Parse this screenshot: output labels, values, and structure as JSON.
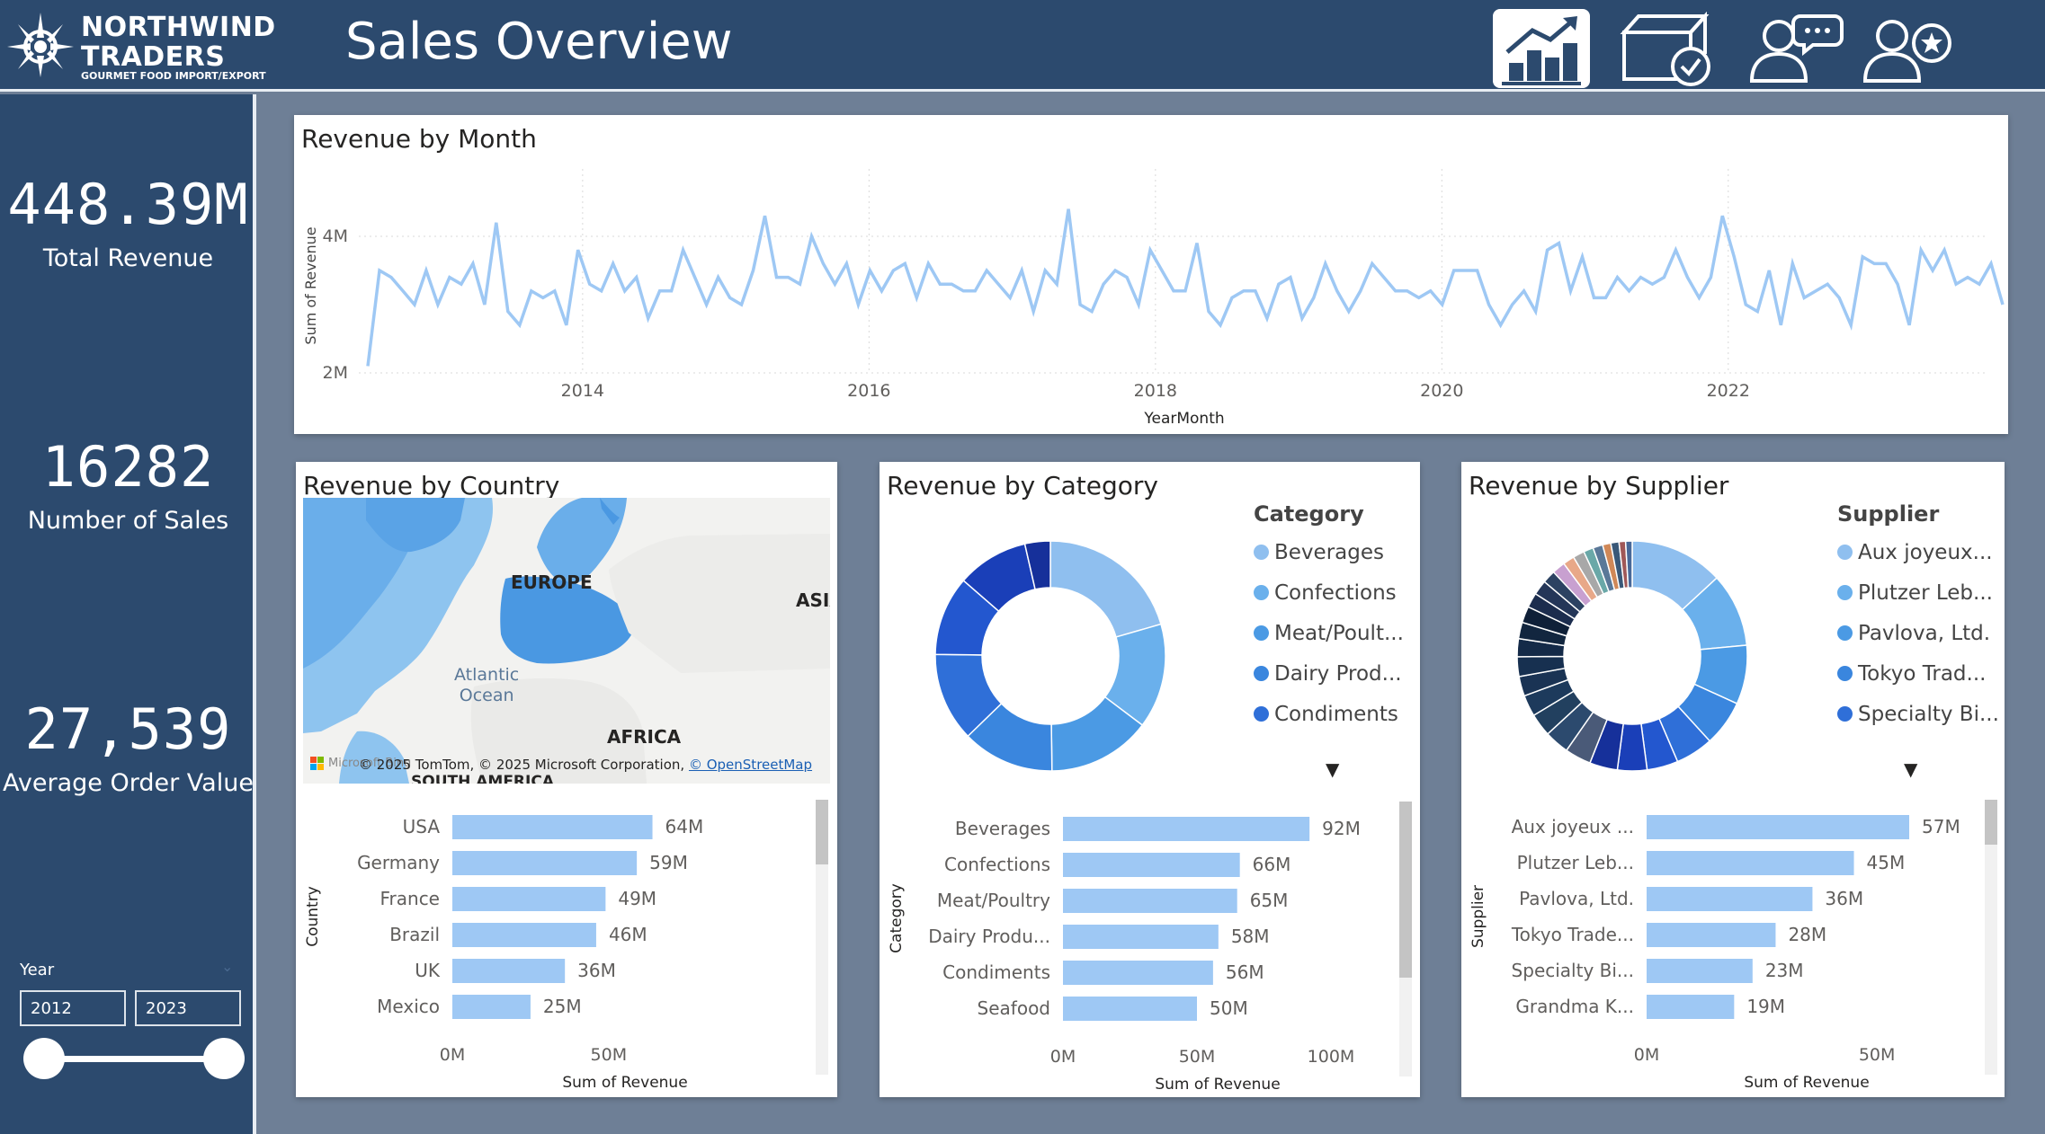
{
  "brand": {
    "name_line1": "NORTHWIND",
    "name_line2": "TRADERS",
    "tagline": "GOURMET FOOD IMPORT/EXPORT"
  },
  "header": {
    "title": "Sales Overview",
    "nav_icons": [
      "sales-overview-icon",
      "shipping-box-icon",
      "customer-chat-icon",
      "employee-star-icon"
    ]
  },
  "kpis": [
    {
      "value": "448.39M",
      "label": "Total Revenue"
    },
    {
      "value": "16282",
      "label": "Number of Sales"
    },
    {
      "value": "27,539",
      "label": "Average Order Value"
    }
  ],
  "year_slicer": {
    "label": "Year",
    "from": "2012",
    "to": "2023"
  },
  "revenue_by_month": {
    "title": "Revenue by Month",
    "chart_data": {
      "type": "line",
      "x_label": "YearMonth",
      "y_label": "Sum of Revenue",
      "x_ticks": [
        "2014",
        "2016",
        "2018",
        "2020",
        "2022"
      ],
      "y_ticks": [
        "2M",
        "4M"
      ],
      "ylim": [
        2000000,
        4000000
      ],
      "x_start": "2012-07",
      "x_end": "2023-12",
      "values_m": [
        2.1,
        3.5,
        3.4,
        3.2,
        3.0,
        3.5,
        3.0,
        3.4,
        3.3,
        3.6,
        3.0,
        4.2,
        2.9,
        2.7,
        3.2,
        3.1,
        3.2,
        2.7,
        3.8,
        3.3,
        3.2,
        3.6,
        3.2,
        3.4,
        2.8,
        3.2,
        3.2,
        3.8,
        3.4,
        3.0,
        3.4,
        3.1,
        3.0,
        3.5,
        4.3,
        3.4,
        3.4,
        3.3,
        4.0,
        3.6,
        3.3,
        3.6,
        3.0,
        3.5,
        3.2,
        3.5,
        3.6,
        3.1,
        3.6,
        3.3,
        3.3,
        3.2,
        3.2,
        3.5,
        3.3,
        3.1,
        3.5,
        2.9,
        3.5,
        3.3,
        4.4,
        3.0,
        2.9,
        3.3,
        3.5,
        3.4,
        3.0,
        3.8,
        3.5,
        3.2,
        3.2,
        3.9,
        2.9,
        2.7,
        3.1,
        3.2,
        3.2,
        2.8,
        3.3,
        3.4,
        2.8,
        3.1,
        3.6,
        3.2,
        2.9,
        3.2,
        3.6,
        3.4,
        3.2,
        3.2,
        3.1,
        3.2,
        3.0,
        3.5,
        3.5,
        3.5,
        3.0,
        2.7,
        3.0,
        3.2,
        2.9,
        3.8,
        3.9,
        3.2,
        3.7,
        3.1,
        3.1,
        3.4,
        3.2,
        3.4,
        3.3,
        3.4,
        3.8,
        3.4,
        3.1,
        3.4,
        4.3,
        3.7,
        3.0,
        2.9,
        3.5,
        2.7,
        3.6,
        3.1,
        3.2,
        3.3,
        3.1,
        2.7,
        3.7,
        3.6,
        3.6,
        3.3,
        2.7,
        3.8,
        3.5,
        3.8,
        3.3,
        3.4,
        3.3,
        3.6,
        3.0
      ]
    }
  },
  "revenue_by_country": {
    "title": "Revenue by Country",
    "map_labels": {
      "europe": "EUROPE",
      "asia": "ASIA",
      "ocean_line1": "Atlantic",
      "ocean_line2": "Ocean",
      "africa": "AFRICA",
      "south_america": "SOUTH AMERICA",
      "ms_logo": "Microsoft Bing",
      "copyright": "© 2025 TomTom, © 2025 Microsoft Corporation,",
      "osm_link": "© OpenStreetMap"
    },
    "chart_data": {
      "type": "bar",
      "orientation": "horizontal",
      "y_label": "Country",
      "x_label": "Sum of Revenue",
      "categories": [
        "USA",
        "Germany",
        "France",
        "Brazil",
        "UK",
        "Mexico"
      ],
      "values_m": [
        64,
        59,
        49,
        46,
        36,
        25
      ],
      "data_labels": [
        "64M",
        "59M",
        "49M",
        "46M",
        "36M",
        "25M"
      ],
      "x_ticks": [
        "0M",
        "50M"
      ],
      "x_tick_values_m": [
        0,
        50
      ],
      "xlim_m": [
        0,
        65
      ]
    }
  },
  "revenue_by_category": {
    "title": "Revenue by Category",
    "legend_title": "Category",
    "legend": [
      "Beverages",
      "Confections",
      "Meat/Poult...",
      "Dairy Prod...",
      "Condiments"
    ],
    "donut": {
      "type": "pie",
      "values": [
        92,
        66,
        65,
        58,
        56,
        50,
        45,
        16
      ],
      "colors": [
        "#8fbfef",
        "#6ab0ec",
        "#4b9ae4",
        "#3a86de",
        "#2f6fd8",
        "#2357cf",
        "#1a3fb8",
        "#16309a"
      ]
    },
    "chart_data": {
      "type": "bar",
      "orientation": "horizontal",
      "y_label": "Category",
      "x_label": "Sum of Revenue",
      "categories": [
        "Beverages",
        "Confections",
        "Meat/Poultry",
        "Dairy Produ...",
        "Condiments",
        "Seafood"
      ],
      "values_m": [
        92,
        66,
        65,
        58,
        56,
        50
      ],
      "data_labels": [
        "92M",
        "66M",
        "65M",
        "58M",
        "56M",
        "50M"
      ],
      "x_ticks": [
        "0M",
        "50M",
        "100M"
      ],
      "x_tick_values_m": [
        0,
        50,
        100
      ],
      "xlim_m": [
        0,
        100
      ]
    }
  },
  "revenue_by_supplier": {
    "title": "Revenue by Supplier",
    "legend_title": "Supplier",
    "legend": [
      "Aux joyeux...",
      "Plutzer Leb...",
      "Pavlova, Ltd.",
      "Tokyo Trad...",
      "Specialty Bi..."
    ],
    "donut": {
      "type": "pie",
      "values": [
        57,
        45,
        36,
        28,
        23,
        19,
        18,
        17,
        16,
        15,
        14,
        13,
        12,
        12,
        11,
        10,
        10,
        9,
        9,
        8,
        8,
        7,
        7,
        6,
        6,
        5,
        5,
        4,
        4
      ],
      "colors": [
        "#8fbfef",
        "#6ab0ec",
        "#4b9ae4",
        "#3a86de",
        "#2f6fd8",
        "#2357cf",
        "#1a3fb8",
        "#16309a",
        "#4a5a78",
        "#2c4a6e",
        "#22405f",
        "#1d3a5c",
        "#1a3354",
        "#173050",
        "#142a48",
        "#12263f",
        "#0f2038",
        "#1c2d4e",
        "#243658",
        "#2c4262",
        "#c8a0d0",
        "#e8a888",
        "#a8a8a8",
        "#6aa8a8",
        "#5a7898",
        "#d08858",
        "#3a5878",
        "#a05858",
        "#486898"
      ]
    },
    "chart_data": {
      "type": "bar",
      "orientation": "horizontal",
      "y_label": "Supplier",
      "x_label": "Sum of Revenue",
      "categories": [
        "Aux joyeux ...",
        "Plutzer Leb...",
        "Pavlova, Ltd.",
        "Tokyo Trade...",
        "Specialty Bi...",
        "Grandma K..."
      ],
      "values_m": [
        57,
        45,
        36,
        28,
        23,
        19
      ],
      "data_labels": [
        "57M",
        "45M",
        "36M",
        "28M",
        "23M",
        "19M"
      ],
      "x_ticks": [
        "0M",
        "50M"
      ],
      "x_tick_values_m": [
        0,
        50
      ],
      "xlim_m": [
        0,
        57
      ]
    }
  },
  "colors": {
    "header_bg": "#2c4a6e",
    "page_bg": "#6e7f96",
    "bar": "#9ec8f4",
    "line": "#9ec8f4"
  }
}
